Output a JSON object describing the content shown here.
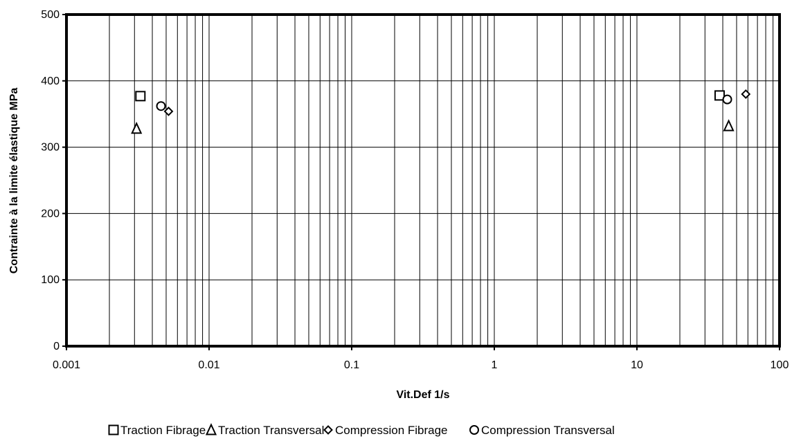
{
  "chart_data": {
    "type": "scatter",
    "xlabel": "Vit.Def 1/s",
    "ylabel": "Contrainte à la limite élastique  MPa",
    "x_scale": "log",
    "xlim": [
      0.001,
      100
    ],
    "ylim": [
      0,
      500
    ],
    "x_ticks": [
      "0.001",
      "0.01",
      "0.1",
      "1",
      "10",
      "100"
    ],
    "y_ticks": [
      "0",
      "100",
      "200",
      "300",
      "400",
      "500"
    ],
    "grid": true,
    "legend_position": "bottom",
    "series": [
      {
        "name": "Traction Fibrage",
        "marker": "square",
        "points": [
          {
            "x": 0.0033,
            "y": 377
          },
          {
            "x": 38,
            "y": 378
          }
        ]
      },
      {
        "name": "Traction Transversal",
        "marker": "triangle",
        "points": [
          {
            "x": 0.0031,
            "y": 328
          },
          {
            "x": 44,
            "y": 332
          }
        ]
      },
      {
        "name": "Compression Fibrage",
        "marker": "diamond",
        "points": [
          {
            "x": 0.0052,
            "y": 354
          },
          {
            "x": 58,
            "y": 380
          }
        ]
      },
      {
        "name": "Compression Transversal",
        "marker": "circle",
        "points": [
          {
            "x": 0.0046,
            "y": 362
          },
          {
            "x": 43,
            "y": 372
          }
        ]
      }
    ]
  }
}
